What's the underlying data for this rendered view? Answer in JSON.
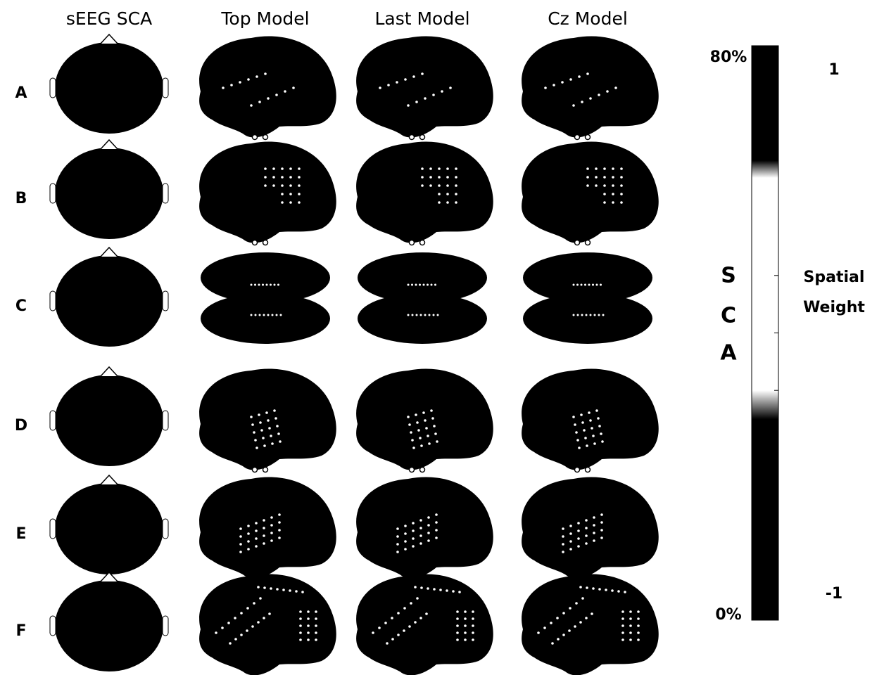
{
  "columns": [
    "sEEG SCA",
    "Top Model",
    "Last Model",
    "Cz Model"
  ],
  "rows": [
    "A",
    "B",
    "C",
    "D",
    "E",
    "F"
  ],
  "colorbar": {
    "top_label": "80%",
    "bottom_label": "0%",
    "title_letters": [
      "S",
      "C",
      "A"
    ],
    "right_top_label": "1",
    "right_bottom_label": "-1",
    "right_title": [
      "Spatial",
      "Weight"
    ]
  }
}
